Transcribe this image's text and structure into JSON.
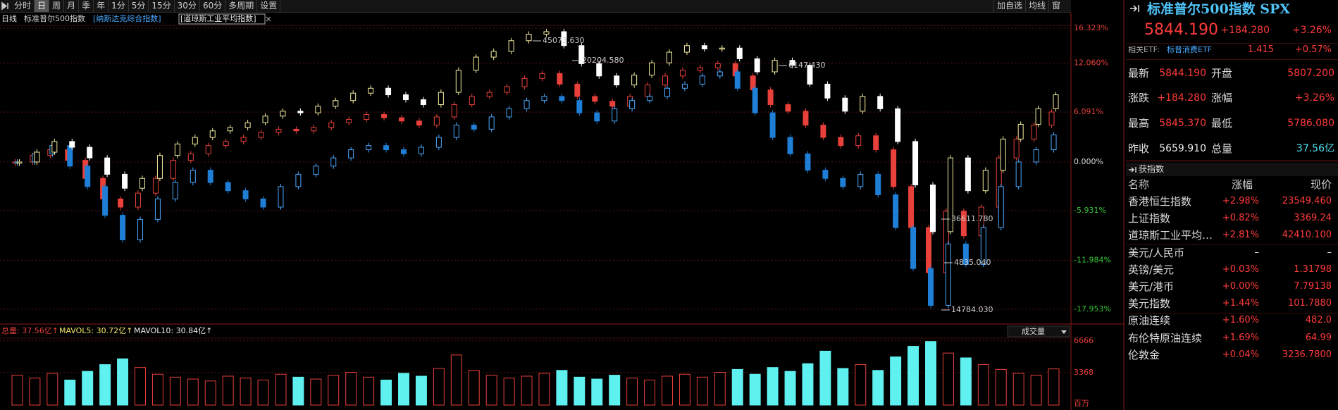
{
  "toolbar": {
    "periods": [
      "分时",
      "日",
      "周",
      "月",
      "季",
      "年",
      "1分",
      "5分",
      "15分",
      "30分",
      "60分",
      "多周期",
      "设置"
    ],
    "selected": "日",
    "actions": [
      "加自选",
      "均线",
      "窗"
    ]
  },
  "chart_data": [
    {
      "type": "candlestick",
      "period_label": "日线",
      "series": [
        {
          "name": "标准普尔500指数",
          "color": "#cfcfcf",
          "color_up": "#e8403a",
          "color_down": "#e8403a",
          "values": [
            0,
            0.8,
            1.5,
            0.2,
            -2.0,
            -4.5,
            -5.5,
            -3.8,
            -2.0,
            0.2,
            1.0,
            2.0,
            2.5,
            3.0,
            3.6,
            4.0,
            3.8,
            4.2,
            4.8,
            5.2,
            5.8,
            5.4,
            5.0,
            4.5,
            5.5,
            7.0,
            8.0,
            8.5,
            9.2,
            10.2,
            10.8,
            9.5,
            8.0,
            7.4,
            6.8,
            8.0,
            9.4,
            10.5,
            11.2,
            11.5,
            12.0,
            10.5,
            8.8,
            7.0,
            6.2,
            4.5,
            3.0,
            2.0,
            3.2,
            1.5,
            -3.0,
            -8.0,
            -13.5,
            -6.0,
            -9.0,
            -5.5,
            0.5,
            2.8,
            4.5,
            6.1
          ]
        },
        {
          "name": "[纳斯达克综合指数]",
          "color": "#4aa8ff",
          "color_up": "#4aa8ff",
          "color_down": "#1f7fd6",
          "values": [
            0,
            1.0,
            2.0,
            -0.5,
            -3.0,
            -6.5,
            -9.5,
            -7.0,
            -4.5,
            -2.5,
            -1.0,
            -2.5,
            -3.5,
            -4.5,
            -5.5,
            -3.0,
            -1.5,
            -0.5,
            0.5,
            1.5,
            2.0,
            1.5,
            1.0,
            1.8,
            3.0,
            4.5,
            4.0,
            5.5,
            6.5,
            7.5,
            8.0,
            7.5,
            6.0,
            5.0,
            6.5,
            7.5,
            8.0,
            9.0,
            9.5,
            10.5,
            11.0,
            9.0,
            6.0,
            3.0,
            1.0,
            -1.0,
            -2.0,
            -3.0,
            -1.5,
            -4.0,
            -8.0,
            -13.0,
            -17.5,
            -10.0,
            -12.5,
            -8.0,
            -3.0,
            0.0,
            1.5,
            3.3
          ]
        },
        {
          "name": "[道琼斯工业平均指数]",
          "color": "#eeeeee",
          "color_up": "#f5eea0",
          "color_down": "#ffffff",
          "values": [
            0,
            1.2,
            2.5,
            1.8,
            0.5,
            -1.5,
            -3.2,
            -2.0,
            0.8,
            2.2,
            3.0,
            3.8,
            4.2,
            4.8,
            5.6,
            6.2,
            6.0,
            6.8,
            7.5,
            8.4,
            9.0,
            8.2,
            7.6,
            7.0,
            8.5,
            11.2,
            12.8,
            13.5,
            14.8,
            15.6,
            15.9,
            14.2,
            12.0,
            10.5,
            9.4,
            10.6,
            12.1,
            13.4,
            14.2,
            13.8,
            13.9,
            12.6,
            11.0,
            12.4,
            11.8,
            9.5,
            7.8,
            6.2,
            8.0,
            6.5,
            2.5,
            -2.8,
            -8.5,
            0.5,
            -3.5,
            -1.0,
            2.8,
            4.6,
            6.5,
            8.2
          ]
        }
      ],
      "ylim": [
        -19.6,
        16.5
      ],
      "yticks": [
        {
          "value": 16.323,
          "label": "16.323%"
        },
        {
          "value": 12.06,
          "label": "12.060%"
        },
        {
          "value": 6.091,
          "label": "6.091%"
        },
        {
          "value": 0,
          "label": "0.000%"
        },
        {
          "value": -5.931,
          "label": "-5.931%"
        },
        {
          "value": -11.984,
          "label": "-11.984%"
        },
        {
          "value": -17.953,
          "label": "-17.953%"
        }
      ],
      "grid": true,
      "annotations": [
        "45073.630",
        "20204.580",
        "6147.430",
        "36611.780",
        "4835.040",
        "14784.030"
      ]
    },
    {
      "type": "bar",
      "indicator": "成交量",
      "stats": [
        "总量: 37.56亿↑",
        "MAVOL5: 30.72亿↑",
        "MAVOL10: 30.84亿↑"
      ],
      "series": [
        {
          "name": "成交量",
          "color_up": "#e8403a",
          "color_down": "#5ff0f0",
          "values": [
            3100,
            2800,
            3300,
            2600,
            3500,
            4200,
            4800,
            3900,
            3200,
            2900,
            2700,
            2500,
            3000,
            2800,
            2600,
            3200,
            2900,
            2700,
            3100,
            3400,
            2900,
            2600,
            3300,
            3000,
            3800,
            5200,
            3600,
            3100,
            2800,
            3000,
            3300,
            3600,
            2900,
            2700,
            3100,
            2800,
            2600,
            3000,
            3200,
            2900,
            3400,
            3700,
            3200,
            3900,
            3500,
            4300,
            5600,
            3800,
            4200,
            3600,
            5000,
            6100,
            6600,
            5400,
            4900,
            4200,
            3700,
            3300,
            3100,
            3756
          ]
        }
      ],
      "ylim": [
        0,
        6800
      ],
      "yticks": [
        3368,
        6666
      ],
      "unit": "百万"
    }
  ],
  "quote": {
    "title": "标准普尔500指数 SPX",
    "price": "5844.190",
    "change": "+184.280",
    "change_pct": "+3.26%",
    "etf": {
      "label": "相关ETF:",
      "name": "标普消费ETF",
      "price": "1.415",
      "change_pct": "+0.57%"
    },
    "fields": [
      [
        "最新",
        "5844.190",
        "开盘",
        "5807.200"
      ],
      [
        "涨跌",
        "+184.280",
        "涨幅",
        "+3.26%"
      ],
      [
        "最高",
        "5845.370",
        "最低",
        "5786.080"
      ],
      [
        "昨收",
        "5659.910",
        "总量",
        "37.56亿"
      ]
    ]
  },
  "global_indices": {
    "title": "获指数",
    "headers": [
      "名称",
      "涨幅",
      "现价"
    ],
    "rows": [
      [
        "香港恒生指数",
        "+2.98%",
        "23549.460"
      ],
      [
        "上证指数",
        "+0.82%",
        "3369.24"
      ],
      [
        "道琼斯工业平均…",
        "+2.81%",
        "42410.100"
      ],
      [
        "美元/人民币",
        "–",
        "–"
      ],
      [
        "英镑/美元",
        "+0.03%",
        "1.31798"
      ],
      [
        "美元/港币",
        "+0.00%",
        "7.79138"
      ],
      [
        "美元指数",
        "+1.44%",
        "101.7880"
      ],
      [
        "原油连续",
        "+1.60%",
        "482.0"
      ],
      [
        "布伦特原油连续",
        "+1.69%",
        "64.99"
      ],
      [
        "伦敦金",
        "+0.04%",
        "3236.7800"
      ]
    ]
  }
}
